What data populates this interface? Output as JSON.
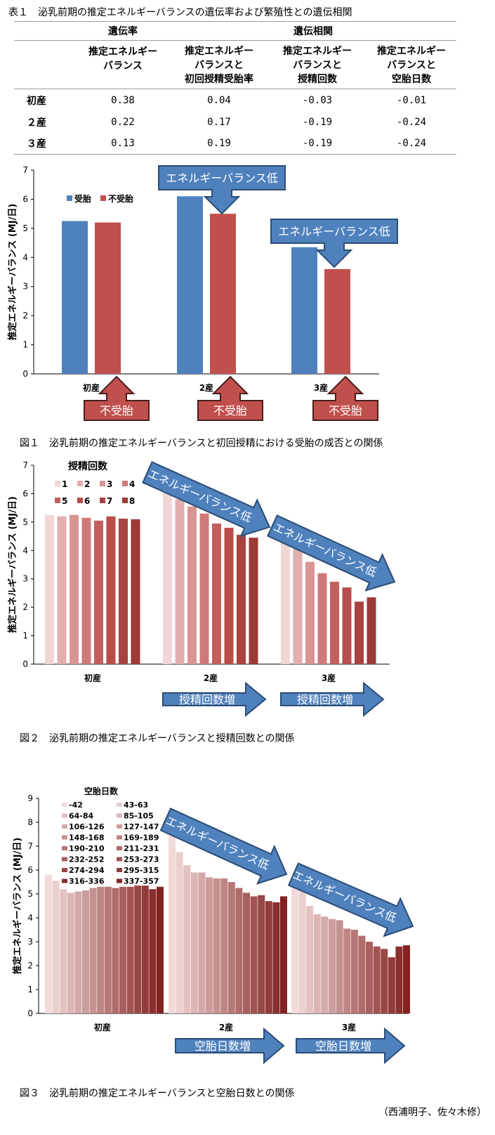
{
  "table1": {
    "caption": "表１　泌乳前期の推定エネルギーバランスの遺伝率および繁殖性との遺伝相関",
    "group_heritability": "遺伝率",
    "group_correlation": "遺伝相関",
    "columns": [
      [
        "推定エネルギー",
        "バランス"
      ],
      [
        "推定エネルギー",
        "バランスと",
        "初回授精受胎率"
      ],
      [
        "推定エネルギー",
        "バランスと",
        "授精回数"
      ],
      [
        "推定エネルギー",
        "バランスと",
        "空胎日数"
      ]
    ],
    "rows": [
      {
        "label": "初産",
        "values": [
          "0.38",
          "0.04",
          "-0.03",
          "-0.01"
        ]
      },
      {
        "label": "２産",
        "values": [
          "0.22",
          "0.17",
          "-0.19",
          "-0.24"
        ]
      },
      {
        "label": "３産",
        "values": [
          "0.13",
          "0.19",
          "-0.19",
          "-0.24"
        ]
      }
    ]
  },
  "figure1": {
    "caption": "図１　泌乳前期の推定エネルギーバランスと初回授精における受胎の成否との関係",
    "callout": "エネルギーバランス低",
    "bottom_label": "不受胎"
  },
  "figure2": {
    "caption": "図２　泌乳前期の推定エネルギーバランスと授精回数との関係",
    "callout": "エネルギーバランス低",
    "increase_label": "授精回数増"
  },
  "figure3": {
    "caption": "図３　泌乳前期の推定エネルギーバランスと空胎日数との関係",
    "callout": "エネルギーバランス低",
    "increase_label": "空胎日数増"
  },
  "byline": "（西浦明子、佐々木修）",
  "chart_data": [
    {
      "type": "bar",
      "ylabel": "推定エネルギーバランス (MJ/日)",
      "ylim": [
        0,
        7
      ],
      "categories": [
        "初産",
        "2産",
        "3産"
      ],
      "series": [
        {
          "name": "受胎",
          "color": "#4f81bd",
          "values": [
            5.25,
            6.1,
            4.35
          ]
        },
        {
          "name": "不受胎",
          "color": "#c0504d",
          "values": [
            5.2,
            5.5,
            3.6
          ]
        }
      ]
    },
    {
      "type": "bar",
      "ylabel": "推定エネルギーバランス (MJ/日)",
      "ylim": [
        0,
        7
      ],
      "legend_title": "授精回数",
      "categories": [
        "初産",
        "2産",
        "3産"
      ],
      "series": [
        {
          "name": "1",
          "color": "#f2d6d6",
          "values": [
            5.25,
            6.1,
            4.35
          ]
        },
        {
          "name": "2",
          "color": "#e2aeae",
          "values": [
            5.2,
            5.8,
            4.1
          ]
        },
        {
          "name": "3",
          "color": "#d99494",
          "values": [
            5.25,
            5.55,
            3.6
          ]
        },
        {
          "name": "4",
          "color": "#cf7a79",
          "values": [
            5.15,
            5.3,
            3.2
          ]
        },
        {
          "name": "5",
          "color": "#c25f5e",
          "values": [
            5.05,
            4.95,
            2.9
          ]
        },
        {
          "name": "6",
          "color": "#b84e4c",
          "values": [
            5.2,
            4.8,
            2.7
          ]
        },
        {
          "name": "7",
          "color": "#a94340",
          "values": [
            5.12,
            4.55,
            2.2
          ]
        },
        {
          "name": "8",
          "color": "#9b3a37",
          "values": [
            5.1,
            4.45,
            2.35
          ]
        }
      ]
    },
    {
      "type": "bar",
      "ylabel": "推定エネルギーバランス (MJ/日)",
      "ylim": [
        0,
        9
      ],
      "legend_title": "空胎日数",
      "categories": [
        "初産",
        "2産",
        "3産"
      ],
      "series_names": [
        "-42",
        "43-63",
        "64-84",
        "85-105",
        "106-126",
        "127-147",
        "148-168",
        "169-189",
        "190-210",
        "211-231",
        "232-252",
        "253-273",
        "274-294",
        "295-315",
        "316-336",
        "337-357"
      ],
      "values": [
        [
          5.8,
          5.55,
          5.2,
          5.05,
          5.1,
          5.15,
          5.25,
          5.3,
          5.3,
          5.25,
          5.3,
          5.3,
          5.35,
          5.35,
          5.2,
          5.3
        ],
        [
          7.45,
          6.75,
          6.2,
          5.9,
          5.9,
          5.7,
          5.65,
          5.65,
          5.5,
          5.25,
          5.05,
          4.9,
          4.95,
          4.7,
          4.65,
          4.9
        ],
        [
          5.7,
          5.15,
          4.5,
          4.15,
          4.05,
          3.95,
          3.9,
          3.55,
          3.5,
          3.25,
          3.0,
          2.8,
          2.7,
          2.35,
          2.8,
          2.85
        ]
      ]
    }
  ]
}
